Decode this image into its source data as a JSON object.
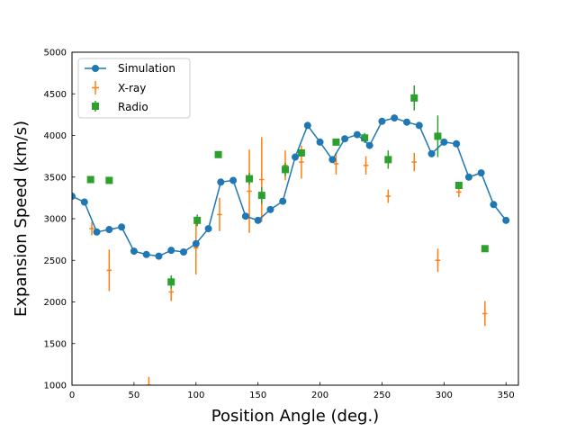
{
  "chart_data": {
    "type": "scatter",
    "title": "",
    "xlabel": "Position Angle (deg.)",
    "ylabel": "Expansion Speed (km/s)",
    "xlim": [
      0,
      360
    ],
    "ylim": [
      1000,
      5000
    ],
    "xticks": [
      0,
      50,
      100,
      150,
      200,
      250,
      300,
      350
    ],
    "yticks": [
      1000,
      1500,
      2000,
      2500,
      3000,
      3500,
      4000,
      4500,
      5000
    ],
    "legend_position": "top-left",
    "colors": {
      "simulation": "#1f77b4",
      "xray": "#ff7f0e",
      "radio": "#2ca02c"
    },
    "series": [
      {
        "name": "Simulation",
        "style": "line-marker",
        "x": [
          0,
          10,
          20,
          30,
          40,
          50,
          60,
          70,
          80,
          90,
          100,
          110,
          120,
          130,
          140,
          150,
          160,
          170,
          180,
          190,
          200,
          210,
          220,
          230,
          240,
          250,
          260,
          270,
          280,
          290,
          300,
          310,
          320,
          330,
          340,
          350
        ],
        "y": [
          3270,
          3200,
          2840,
          2870,
          2900,
          2610,
          2570,
          2550,
          2620,
          2600,
          2700,
          2880,
          3440,
          3460,
          3030,
          2980,
          3110,
          3210,
          3740,
          4120,
          3920,
          3710,
          3960,
          4010,
          3880,
          4170,
          4210,
          4160,
          4120,
          3780,
          3920,
          3900,
          3500,
          3550,
          3170,
          2980
        ]
      },
      {
        "name": "X-ray",
        "style": "errorbar",
        "x": [
          16,
          30,
          62,
          80,
          100,
          119,
          143,
          153,
          172,
          185,
          213,
          237,
          255,
          276,
          295,
          312,
          333
        ],
        "y": [
          2880,
          2380,
          1000,
          2120,
          2650,
          3050,
          3330,
          3470,
          3640,
          3680,
          3660,
          3640,
          3270,
          3680,
          2500,
          3320,
          1860
        ],
        "xerr": [
          2,
          2,
          2,
          2,
          2,
          2,
          2,
          2,
          2,
          2,
          2,
          2,
          2,
          2,
          2,
          2,
          2
        ],
        "yerr": [
          80,
          250,
          100,
          110,
          320,
          200,
          500,
          510,
          180,
          200,
          130,
          110,
          80,
          110,
          140,
          60,
          150
        ]
      },
      {
        "name": "Radio",
        "style": "errorbar-square",
        "x": [
          15,
          30,
          80,
          101,
          118,
          143,
          153,
          172,
          185,
          213,
          236,
          255,
          276,
          295,
          312,
          333
        ],
        "y": [
          3470,
          3460,
          2240,
          2980,
          3770,
          3480,
          3280,
          3590,
          3790,
          3920,
          3970,
          3710,
          4450,
          3990,
          3400,
          2640
        ],
        "yerr": [
          0,
          0,
          80,
          70,
          40,
          70,
          100,
          80,
          40,
          40,
          60,
          110,
          150,
          250,
          40,
          0
        ]
      }
    ]
  }
}
